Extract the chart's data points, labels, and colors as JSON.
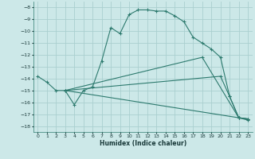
{
  "xlabel": "Humidex (Indice chaleur)",
  "bg_color": "#cce8e8",
  "grid_color": "#aacfcf",
  "line_color": "#2d7a6e",
  "xlim": [
    -0.5,
    23.5
  ],
  "ylim": [
    -18.5,
    -7.5
  ],
  "xticks": [
    0,
    1,
    2,
    3,
    4,
    5,
    6,
    7,
    8,
    9,
    10,
    11,
    12,
    13,
    14,
    15,
    16,
    17,
    18,
    19,
    20,
    21,
    22,
    23
  ],
  "yticks": [
    -8,
    -9,
    -10,
    -11,
    -12,
    -13,
    -14,
    -15,
    -16,
    -17,
    -18
  ],
  "lines": [
    {
      "x": [
        0,
        1,
        2,
        3,
        4,
        5,
        6,
        7,
        8,
        9,
        10,
        11,
        12,
        13,
        14,
        15,
        16,
        17,
        18,
        19,
        20,
        21,
        22,
        23
      ],
      "y": [
        -13.8,
        -14.3,
        -15.0,
        -15.0,
        -16.2,
        -15.0,
        -14.7,
        -12.5,
        -9.7,
        -10.2,
        -8.6,
        -8.2,
        -8.2,
        -8.3,
        -8.3,
        -8.7,
        -9.2,
        -10.5,
        -11.0,
        -11.5,
        -12.2,
        -15.5,
        -17.3,
        -17.4
      ]
    },
    {
      "x": [
        3,
        20,
        21,
        22,
        23
      ],
      "y": [
        -15.0,
        -13.8,
        -15.5,
        -17.3,
        -17.4
      ]
    },
    {
      "x": [
        3,
        22,
        23
      ],
      "y": [
        -15.0,
        -17.3,
        -17.5
      ]
    },
    {
      "x": [
        3,
        18,
        22,
        23
      ],
      "y": [
        -15.0,
        -12.2,
        -17.3,
        -17.4
      ]
    }
  ]
}
